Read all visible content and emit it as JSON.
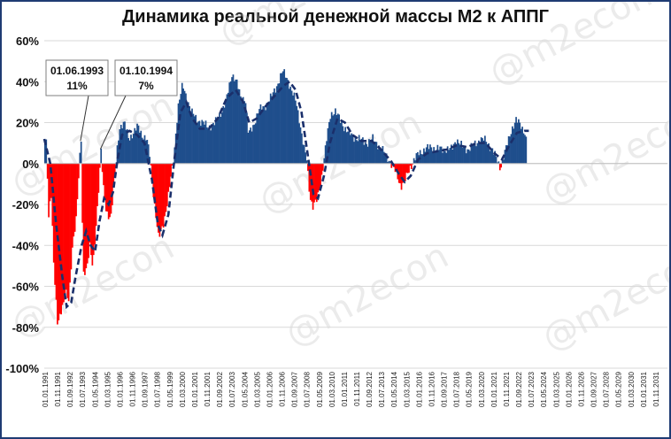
{
  "chart_data": {
    "type": "bar",
    "title": "Динамика реальной денежной массы М2 к АППГ",
    "watermark": "@m2econ",
    "ylim": [
      -100,
      60
    ],
    "y_ticks": [
      "60%",
      "40%",
      "20%",
      "0%",
      "-20%",
      "-40%",
      "-60%",
      "-80%",
      "-100%"
    ],
    "x_ticks": [
      "01.01.1991",
      "01.11.1991",
      "01.09.1992",
      "01.07.1993",
      "01.05.1994",
      "01.03.1995",
      "01.01.1996",
      "01.11.1996",
      "01.09.1997",
      "01.07.1998",
      "01.05.1999",
      "01.03.2000",
      "01.01.2001",
      "01.11.2001",
      "01.09.2002",
      "01.07.2003",
      "01.05.2004",
      "01.03.2005",
      "01.01.2006",
      "01.11.2006",
      "01.09.2007",
      "01.07.2008",
      "01.05.2009",
      "01.03.2010",
      "01.01.2011",
      "01.11.2011",
      "01.09.2012",
      "01.07.2013",
      "01.05.2014",
      "01.03.2015",
      "01.01.2016",
      "01.11.2016",
      "01.09.2017",
      "01.07.2018",
      "01.05.2019",
      "01.03.2020",
      "01.01.2021",
      "01.11.2021",
      "01.09.2022",
      "01.07.2023",
      "01.05.2024",
      "01.03.2025",
      "01.01.2026",
      "01.11.2026",
      "01.09.2027",
      "01.07.2028",
      "01.05.2029",
      "01.03.2030",
      "01.01.2031",
      "01.11.2031"
    ],
    "colors": {
      "positive": "#1f4e8c",
      "negative": "#ff0000",
      "trend": "#1a2f6b",
      "grid": "#d9d9d9"
    },
    "series_keypoints": [
      [
        1991.0,
        10
      ],
      [
        1991.1,
        10
      ],
      [
        1991.25,
        -28
      ],
      [
        1991.4,
        -12
      ],
      [
        1991.6,
        -50
      ],
      [
        1991.85,
        -80
      ],
      [
        1992.1,
        -72
      ],
      [
        1992.4,
        -62
      ],
      [
        1992.6,
        -68
      ],
      [
        1992.85,
        -40
      ],
      [
        1993.1,
        -25
      ],
      [
        1993.3,
        0
      ],
      [
        1993.42,
        11
      ],
      [
        1993.55,
        -55
      ],
      [
        1993.8,
        -50
      ],
      [
        1994.0,
        -40
      ],
      [
        1994.2,
        -52
      ],
      [
        1994.4,
        -32
      ],
      [
        1994.6,
        -10
      ],
      [
        1994.75,
        7
      ],
      [
        1994.9,
        -12
      ],
      [
        1995.1,
        -24
      ],
      [
        1995.4,
        -26
      ],
      [
        1995.6,
        -12
      ],
      [
        1995.8,
        5
      ],
      [
        1996.0,
        18
      ],
      [
        1996.3,
        20
      ],
      [
        1996.6,
        12
      ],
      [
        1996.9,
        15
      ],
      [
        1997.2,
        18
      ],
      [
        1997.5,
        14
      ],
      [
        1997.8,
        12
      ],
      [
        1998.0,
        4
      ],
      [
        1998.3,
        -18
      ],
      [
        1998.6,
        -37
      ],
      [
        1998.9,
        -30
      ],
      [
        1999.2,
        -18
      ],
      [
        1999.6,
        2
      ],
      [
        1999.9,
        28
      ],
      [
        2000.2,
        38
      ],
      [
        2000.5,
        32
      ],
      [
        2000.8,
        25
      ],
      [
        2001.1,
        22
      ],
      [
        2001.5,
        20
      ],
      [
        2001.9,
        18
      ],
      [
        2002.3,
        19
      ],
      [
        2002.7,
        24
      ],
      [
        2003.1,
        30
      ],
      [
        2003.5,
        44
      ],
      [
        2003.8,
        40
      ],
      [
        2004.1,
        32
      ],
      [
        2004.4,
        32
      ],
      [
        2004.6,
        14
      ],
      [
        2004.9,
        18
      ],
      [
        2005.3,
        26
      ],
      [
        2005.7,
        28
      ],
      [
        2006.1,
        32
      ],
      [
        2006.5,
        38
      ],
      [
        2006.9,
        45
      ],
      [
        2007.2,
        42
      ],
      [
        2007.5,
        35
      ],
      [
        2007.8,
        30
      ],
      [
        2008.0,
        22
      ],
      [
        2008.3,
        8
      ],
      [
        2008.5,
        2
      ],
      [
        2008.7,
        -15
      ],
      [
        2008.9,
        -21
      ],
      [
        2009.2,
        -18
      ],
      [
        2009.5,
        -6
      ],
      [
        2009.8,
        10
      ],
      [
        2010.1,
        24
      ],
      [
        2010.4,
        26
      ],
      [
        2010.8,
        20
      ],
      [
        2011.2,
        16
      ],
      [
        2011.6,
        13
      ],
      [
        2012.0,
        12
      ],
      [
        2012.5,
        10
      ],
      [
        2012.9,
        12
      ],
      [
        2013.2,
        10
      ],
      [
        2013.6,
        6
      ],
      [
        2014.0,
        2
      ],
      [
        2014.2,
        -1
      ],
      [
        2014.5,
        -5
      ],
      [
        2014.8,
        -11
      ],
      [
        2015.1,
        -8
      ],
      [
        2015.4,
        -2
      ],
      [
        2015.7,
        2
      ],
      [
        2016.0,
        5
      ],
      [
        2016.4,
        7
      ],
      [
        2016.8,
        8
      ],
      [
        2017.3,
        7
      ],
      [
        2017.8,
        7
      ],
      [
        2018.2,
        7
      ],
      [
        2018.5,
        12
      ],
      [
        2018.9,
        8
      ],
      [
        2019.3,
        7
      ],
      [
        2019.7,
        9
      ],
      [
        2020.1,
        12
      ],
      [
        2020.5,
        11
      ],
      [
        2020.9,
        7
      ],
      [
        2021.2,
        2
      ],
      [
        2021.45,
        -2
      ],
      [
        2021.65,
        3
      ],
      [
        2021.9,
        9
      ],
      [
        2022.2,
        17
      ],
      [
        2022.5,
        21
      ],
      [
        2022.8,
        19
      ],
      [
        2023.1,
        15
      ],
      [
        2023.2,
        10
      ]
    ],
    "trend_keypoints": [
      [
        1991.0,
        12
      ],
      [
        1991.4,
        0
      ],
      [
        1991.8,
        -30
      ],
      [
        1992.2,
        -55
      ],
      [
        1992.5,
        -70
      ],
      [
        1992.8,
        -68
      ],
      [
        1993.1,
        -55
      ],
      [
        1993.5,
        -40
      ],
      [
        1993.8,
        -33
      ],
      [
        1994.1,
        -40
      ],
      [
        1994.4,
        -43
      ],
      [
        1994.7,
        -28
      ],
      [
        1995.0,
        -17
      ],
      [
        1995.3,
        -20
      ],
      [
        1995.6,
        -14
      ],
      [
        1995.9,
        2
      ],
      [
        1996.2,
        14
      ],
      [
        1996.7,
        16
      ],
      [
        1997.2,
        14
      ],
      [
        1997.7,
        10
      ],
      [
        1998.2,
        -8
      ],
      [
        1998.6,
        -30
      ],
      [
        1998.9,
        -35
      ],
      [
        1999.3,
        -25
      ],
      [
        1999.7,
        2
      ],
      [
        2000.1,
        25
      ],
      [
        2000.5,
        30
      ],
      [
        2000.9,
        22
      ],
      [
        2001.4,
        17
      ],
      [
        2002.0,
        17
      ],
      [
        2002.6,
        22
      ],
      [
        2003.2,
        32
      ],
      [
        2003.8,
        36
      ],
      [
        2004.3,
        30
      ],
      [
        2004.7,
        20
      ],
      [
        2005.2,
        22
      ],
      [
        2005.8,
        28
      ],
      [
        2006.4,
        33
      ],
      [
        2007.0,
        38
      ],
      [
        2007.4,
        40
      ],
      [
        2007.8,
        36
      ],
      [
        2008.2,
        25
      ],
      [
        2008.6,
        5
      ],
      [
        2009.0,
        -15
      ],
      [
        2009.3,
        -17
      ],
      [
        2009.7,
        -6
      ],
      [
        2010.1,
        10
      ],
      [
        2010.6,
        22
      ],
      [
        2011.1,
        20
      ],
      [
        2011.6,
        14
      ],
      [
        2012.2,
        11
      ],
      [
        2012.9,
        11
      ],
      [
        2013.5,
        7
      ],
      [
        2014.2,
        1
      ],
      [
        2014.7,
        -5
      ],
      [
        2015.1,
        -9
      ],
      [
        2015.5,
        -6
      ],
      [
        2016.0,
        2
      ],
      [
        2016.6,
        5
      ],
      [
        2017.3,
        6
      ],
      [
        2018.0,
        7
      ],
      [
        2018.6,
        9
      ],
      [
        2019.3,
        8
      ],
      [
        2019.9,
        10
      ],
      [
        2020.5,
        10
      ],
      [
        2021.1,
        5
      ],
      [
        2021.6,
        2
      ],
      [
        2022.1,
        9
      ],
      [
        2022.6,
        15
      ],
      [
        2023.1,
        16
      ],
      [
        2023.4,
        16
      ]
    ],
    "annotations": [
      {
        "date": "01.06.1993",
        "value": "11%",
        "x": 1993.42,
        "y": 11
      },
      {
        "date": "01.10.1994",
        "value": "7%",
        "x": 1994.75,
        "y": 7
      }
    ]
  }
}
